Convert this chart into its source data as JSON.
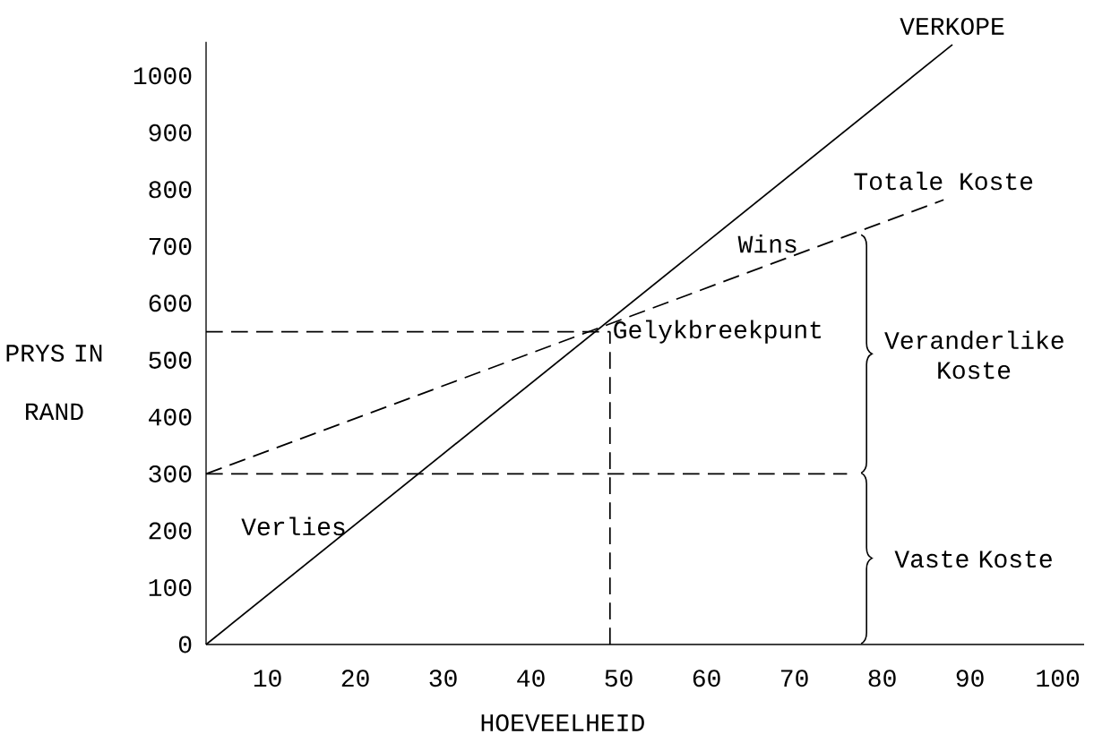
{
  "chart_data": {
    "type": "line",
    "xlabel": "HOEVEELHEID",
    "ylabel": "PRYS IN RAND",
    "xlim": [
      3,
      103
    ],
    "ylim": [
      0,
      1060
    ],
    "xticks": [
      10,
      20,
      30,
      40,
      50,
      60,
      70,
      80,
      90,
      100
    ],
    "yticks": [
      0,
      100,
      200,
      300,
      400,
      500,
      600,
      700,
      800,
      900,
      1000
    ],
    "grid": false,
    "marker": "none",
    "series": [
      {
        "name": "VERKOPE",
        "color": "#000000",
        "x": [
          3,
          88
        ],
        "values": [
          0,
          1055
        ],
        "line_style": "solid"
      },
      {
        "name": "Totale Koste",
        "color": "#000000",
        "x": [
          3,
          87
        ],
        "values": [
          300,
          782
        ],
        "line_style": "dashed"
      },
      {
        "color": "#000000",
        "x": [
          3,
          76
        ],
        "values": [
          300,
          300
        ],
        "line_style": "dashed"
      },
      {
        "color": "#000000",
        "x": [
          3,
          49
        ],
        "values": [
          550,
          550
        ],
        "line_style": "dashed"
      },
      {
        "color": "#000000",
        "x": [
          49,
          49
        ],
        "values": [
          0,
          550
        ],
        "line_style": "dashed"
      }
    ],
    "annotations": [
      {
        "text": "Gelykbreekpunt",
        "x": 49,
        "y": 550
      },
      "Wins",
      "Verlies",
      "Veranderlike Koste",
      "Vaste Koste"
    ]
  }
}
